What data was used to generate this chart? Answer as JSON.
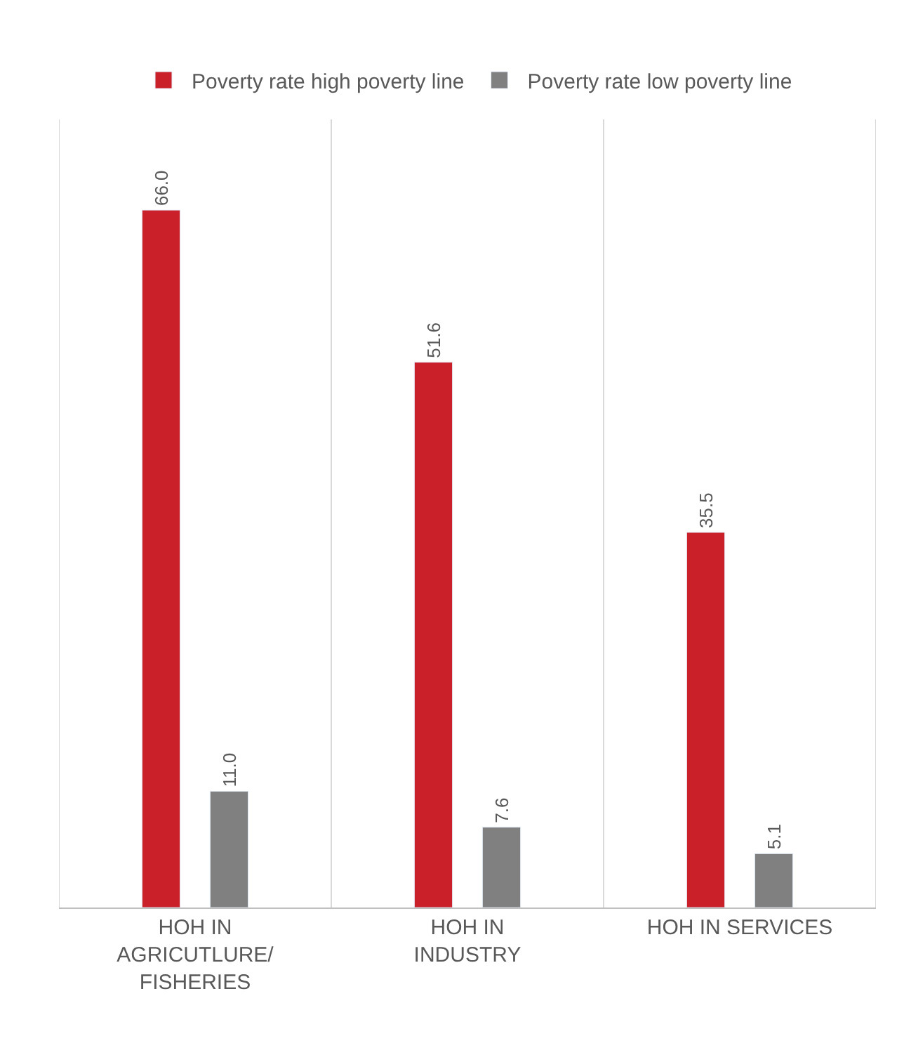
{
  "chart_data": {
    "type": "bar",
    "categories": [
      "HOH IN\nAGRICUTLURE/\nFISHERIES",
      "HOH IN\nINDUSTRY",
      "HOH IN SERVICES"
    ],
    "series": [
      {
        "name": "Poverty rate high poverty line",
        "color": "#c9202a",
        "values": [
          66.0,
          51.6,
          35.5
        ],
        "value_labels": [
          "66.0",
          "51.6",
          "35.5"
        ]
      },
      {
        "name": "Poverty rate low poverty line",
        "color": "#808080",
        "values": [
          11.0,
          7.6,
          5.1
        ],
        "value_labels": [
          "11.0",
          "7.6",
          "5.1"
        ]
      }
    ],
    "grid": "x",
    "legend": "top"
  }
}
